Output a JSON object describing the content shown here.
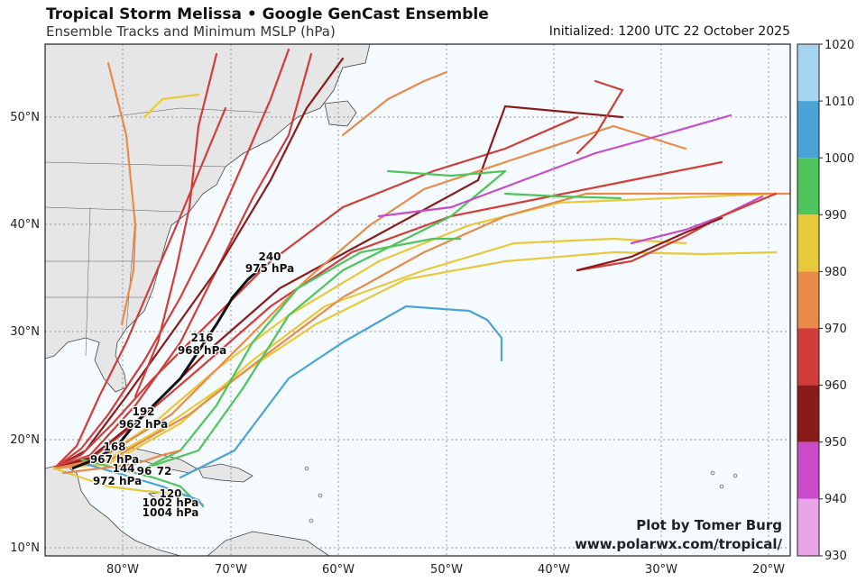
{
  "header": {
    "title": "Tropical Storm Melissa • Google GenCast Ensemble",
    "subtitle": "Ensemble Tracks and Minimum MSLP (hPa)",
    "initialized": "Initialized: 1200 UTC 22 October 2025"
  },
  "credit": {
    "line1": "Plot by Tomer Burg",
    "line2": "www.polarwx.com/tropical/"
  },
  "axes": {
    "lon_labels": [
      "80°W",
      "70°W",
      "60°W",
      "50°W",
      "40°W",
      "30°W",
      "20°W"
    ],
    "lat_labels": [
      "10°N",
      "20°N",
      "30°N",
      "40°N",
      "50°N"
    ]
  },
  "colorbar": {
    "ticks": [
      "1020",
      "1010",
      "1000",
      "990",
      "980",
      "970",
      "960",
      "950",
      "940",
      "930"
    ],
    "colors": [
      "#a6d4ee",
      "#4aa3d6",
      "#4fc45a",
      "#e8c93a",
      "#e88b4a",
      "#d13d3b",
      "#8b1a1a",
      "#c94bc9",
      "#e8a6e8"
    ]
  },
  "colors": {
    "ocean": "#f4fafd",
    "land": "#e6e6e6",
    "border": "#444444",
    "mean_track": "#111111"
  },
  "annotations": [
    {
      "hour": "240",
      "pressure": "975 hPa"
    },
    {
      "hour": "216",
      "pressure": "968 hPa"
    },
    {
      "hour": "192",
      "pressure": "962 hPa"
    },
    {
      "hour": "168",
      "pressure": "967 hPa"
    },
    {
      "hour": "144",
      "pressure": "972 hPa"
    },
    {
      "hour": "120",
      "pressure": "1002 hPa"
    },
    {
      "hour": "96",
      "pressure": "1004 hPa"
    },
    {
      "hour": "72",
      "pressure": ""
    }
  ]
}
